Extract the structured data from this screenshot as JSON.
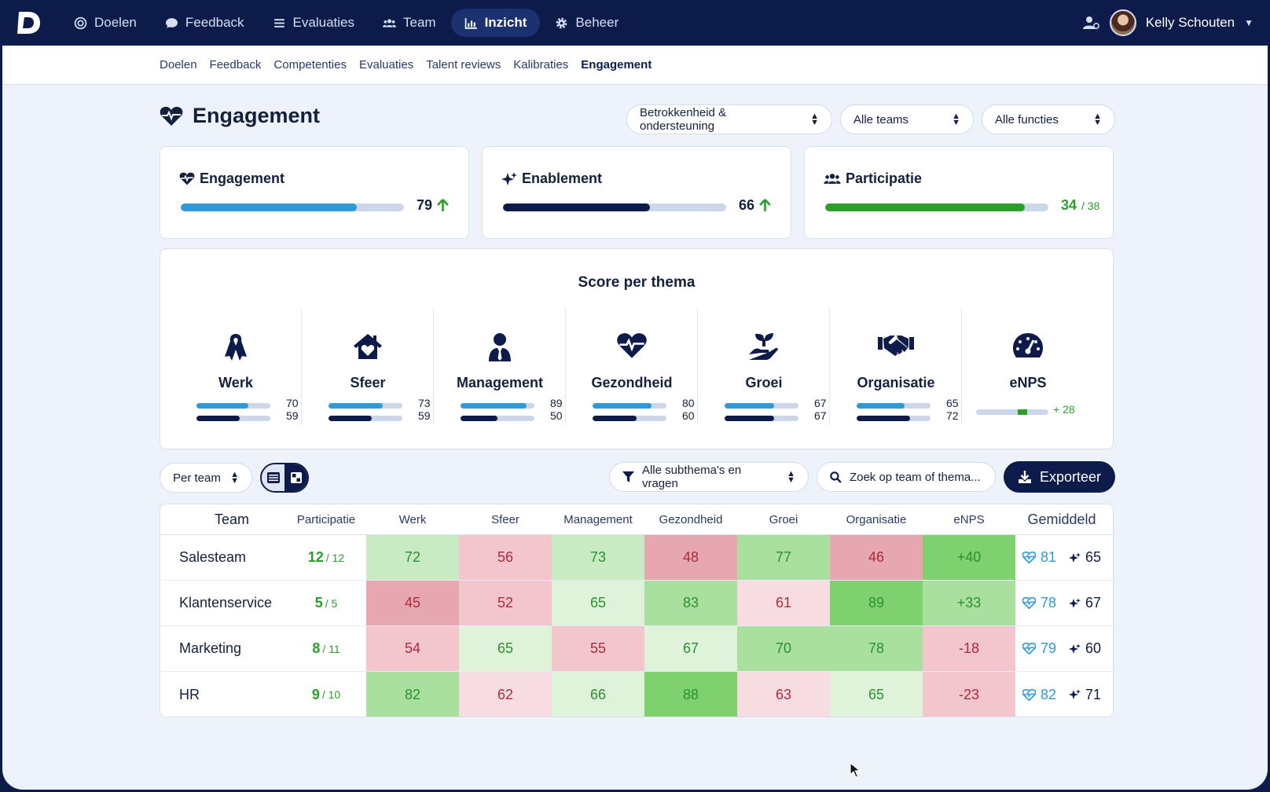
{
  "nav": {
    "items": [
      {
        "label": "Doelen",
        "icon": "target-icon"
      },
      {
        "label": "Feedback",
        "icon": "chat-icon"
      },
      {
        "label": "Evaluaties",
        "icon": "list-icon"
      },
      {
        "label": "Team",
        "icon": "users-icon"
      },
      {
        "label": "Inzicht",
        "icon": "chart-icon",
        "active": true
      },
      {
        "label": "Beheer",
        "icon": "gear-icon"
      }
    ],
    "user_name": "Kelly Schouten"
  },
  "subnav": [
    "Doelen",
    "Feedback",
    "Competenties",
    "Evaluaties",
    "Talent reviews",
    "Kalibraties",
    "Engagement"
  ],
  "page": {
    "title": "Engagement",
    "filters": [
      "Betrokkenheid & ondersteuning",
      "Alle teams",
      "Alle functies"
    ]
  },
  "kpis": {
    "engagement": {
      "label": "Engagement",
      "value": "79",
      "fraction": 0.79,
      "color": "#2f9ad6"
    },
    "enablement": {
      "label": "Enablement",
      "value": "66",
      "fraction": 0.66,
      "color": "#0d1b4a"
    },
    "participatie": {
      "label": "Participatie",
      "value": "34",
      "total": "/ 38",
      "fraction": 0.895,
      "color": "#2aa02a"
    }
  },
  "themes": {
    "title": "Score per thema",
    "items": [
      {
        "name": "Werk",
        "icon": "ribbon-icon",
        "engagement": "70",
        "enablement": "59"
      },
      {
        "name": "Sfeer",
        "icon": "home-heart-icon",
        "engagement": "73",
        "enablement": "59"
      },
      {
        "name": "Management",
        "icon": "manager-icon",
        "engagement": "89",
        "enablement": "50"
      },
      {
        "name": "Gezondheid",
        "icon": "heart-pulse-icon",
        "engagement": "80",
        "enablement": "60"
      },
      {
        "name": "Groei",
        "icon": "seedling-hand-icon",
        "engagement": "67",
        "enablement": "67"
      },
      {
        "name": "Organisatie",
        "icon": "handshake-icon",
        "engagement": "65",
        "enablement": "72"
      },
      {
        "name": "eNPS",
        "icon": "gauge-icon",
        "value": "+ 28"
      }
    ]
  },
  "toolbar": {
    "group_select": "Per team",
    "subtheme_filter": "Alle subthema's en vragen",
    "search_placeholder": "Zoek op team of thema...",
    "export_label": "Exporteer"
  },
  "table": {
    "headers": [
      "Team",
      "Participatie",
      "Werk",
      "Sfeer",
      "Management",
      "Gezondheid",
      "Groei",
      "Organisatie",
      "eNPS",
      "Gemiddeld"
    ],
    "rows": [
      {
        "team": "Salesteam",
        "part": "12",
        "part_total": "/ 12",
        "scores": [
          "72",
          "56",
          "73",
          "48",
          "77",
          "46",
          "+40"
        ],
        "avg_eng": "81",
        "avg_ena": "65"
      },
      {
        "team": "Klantenservice",
        "part": "5",
        "part_total": "/ 5",
        "scores": [
          "45",
          "52",
          "65",
          "83",
          "61",
          "89",
          "+33"
        ],
        "avg_eng": "78",
        "avg_ena": "67"
      },
      {
        "team": "Marketing",
        "part": "8",
        "part_total": "/ 11",
        "scores": [
          "54",
          "65",
          "55",
          "67",
          "70",
          "78",
          "-18"
        ],
        "avg_eng": "79",
        "avg_ena": "60"
      },
      {
        "team": "HR",
        "part": "9",
        "part_total": "/ 10",
        "scores": [
          "82",
          "62",
          "66",
          "88",
          "63",
          "65",
          "-23"
        ],
        "avg_eng": "82",
        "avg_ena": "71"
      }
    ],
    "cell_colors": [
      [
        "#c9ebc3",
        "#f2c6cc",
        "#c9ebc3",
        "#e6a7b0",
        "#a9df9f",
        "#e6a7b0",
        "#7fd170"
      ],
      [
        "#e6a7b0",
        "#f2c6cc",
        "#dff2da",
        "#a9df9f",
        "#f7dde1",
        "#7fd170",
        "#a9df9f"
      ],
      [
        "#f2c6cc",
        "#dff2da",
        "#f2c6cc",
        "#dff2da",
        "#a9df9f",
        "#a9df9f",
        "#f2c6cc"
      ],
      [
        "#a9df9f",
        "#f7dde1",
        "#dff2da",
        "#7fd170",
        "#f7dde1",
        "#dff2da",
        "#f2c6cc"
      ]
    ]
  }
}
